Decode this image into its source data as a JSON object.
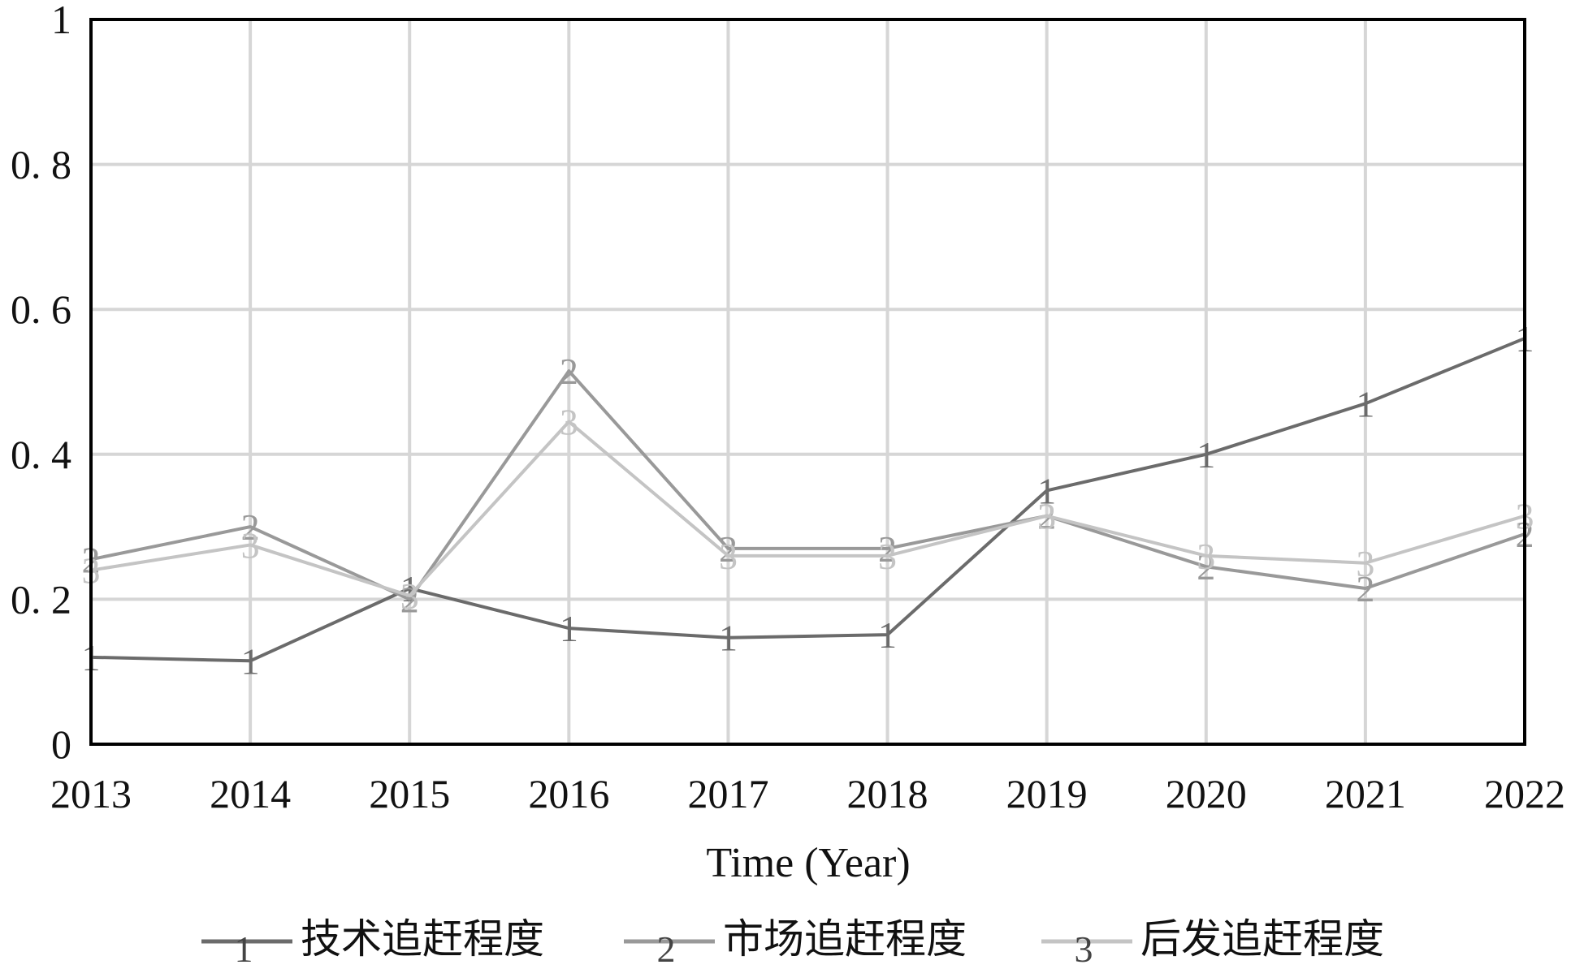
{
  "chart_data": {
    "type": "line",
    "title": "",
    "xlabel": "Time (Year)",
    "ylabel": "",
    "xlim": [
      2013,
      2022
    ],
    "ylim": [
      0,
      1
    ],
    "x": [
      2013,
      2014,
      2015,
      2016,
      2017,
      2018,
      2019,
      2020,
      2021,
      2022
    ],
    "x_tick_labels": [
      "2013",
      "2014",
      "2015",
      "2016",
      "2017",
      "2018",
      "2019",
      "2020",
      "2021",
      "2022"
    ],
    "y_ticks": [
      0,
      0.2,
      0.4,
      0.6,
      0.8,
      1
    ],
    "y_tick_labels": [
      "0",
      "0. 2",
      "0. 4",
      "0. 6",
      "0. 8",
      "1"
    ],
    "grid": true,
    "legend_position": "bottom",
    "series": [
      {
        "marker": "1",
        "name": "技术追赶程度",
        "color": "#6b6b6b",
        "values": [
          0.12,
          0.115,
          0.215,
          0.16,
          0.147,
          0.151,
          0.35,
          0.4,
          0.47,
          0.56
        ]
      },
      {
        "marker": "2",
        "name": "市场追赶程度",
        "color": "#999999",
        "values": [
          0.255,
          0.3,
          0.2,
          0.515,
          0.27,
          0.27,
          0.315,
          0.245,
          0.215,
          0.29
        ]
      },
      {
        "marker": "3",
        "name": "后发追赶程度",
        "color": "#c4c4c4",
        "values": [
          0.24,
          0.275,
          0.205,
          0.445,
          0.26,
          0.26,
          0.315,
          0.26,
          0.25,
          0.315
        ]
      }
    ]
  }
}
